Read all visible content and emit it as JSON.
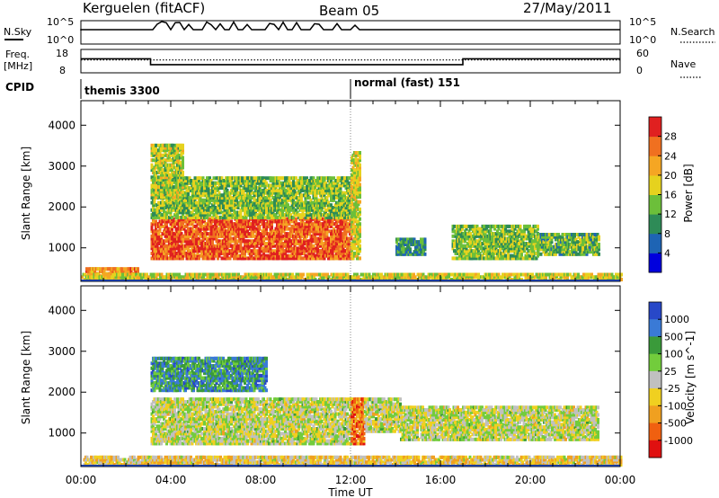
{
  "header": {
    "station": "Kerguelen (fitACF)",
    "beam": "Beam 05",
    "date": "27/May/2011"
  },
  "status_panels": {
    "nsky_label": "N.Sky",
    "nsky_ticks": [
      "10^5",
      "10^0"
    ],
    "nsearch_label": "N.Search",
    "nsearch_ticks": [
      "10^5",
      "10^0"
    ],
    "freq_label_line1": "Freq.",
    "freq_label_line2": "[MHz]",
    "freq_ticks": [
      "18",
      "8"
    ],
    "nave_label": "Nave",
    "nave_ticks": [
      "60",
      "0"
    ],
    "cpid_label": "CPID",
    "cpid_segments": [
      {
        "label": "themis 3300",
        "start_hour": 0
      },
      {
        "label": "normal (fast) 151",
        "start_hour": 12
      }
    ],
    "freq_steps": [
      {
        "from_hour": 0,
        "to_hour": 3.1,
        "level": 0.6
      },
      {
        "from_hour": 3.1,
        "to_hour": 17.0,
        "level": 0.35
      },
      {
        "from_hour": 17.0,
        "to_hour": 24,
        "level": 0.6
      }
    ],
    "nave_level": 0.55
  },
  "chart_data": [
    {
      "type": "heatmap",
      "panel": "power",
      "ylabel": "Slant Range [km]",
      "xlabel": "",
      "ylim": [
        180,
        4600
      ],
      "xlim_hours": [
        0,
        24
      ],
      "y_ticks": [
        "1000",
        "2000",
        "3000",
        "4000"
      ],
      "colorbar_label": "Power [dB]",
      "colorbar_ticks": [
        "4",
        "8",
        "12",
        "16",
        "20",
        "24",
        "28"
      ],
      "colorscale": [
        "#0000dd",
        "#1e64b4",
        "#2e8b57",
        "#6cbf3a",
        "#e6d21e",
        "#f5a623",
        "#f07020",
        "#e02020"
      ],
      "regions": [
        {
          "t0": 3.1,
          "t1": 12.0,
          "r0": 700,
          "r1": 1700,
          "level": 0.85
        },
        {
          "t0": 3.1,
          "t1": 12.0,
          "r0": 1700,
          "r1": 2700,
          "level": 0.45
        },
        {
          "t0": 3.1,
          "t1": 4.5,
          "r0": 2200,
          "r1": 3500,
          "level": 0.5
        },
        {
          "t0": 12.0,
          "t1": 12.4,
          "r0": 700,
          "r1": 3300,
          "level": 0.55
        },
        {
          "t0": 14.0,
          "t1": 15.3,
          "r0": 800,
          "r1": 1200,
          "level": 0.3
        },
        {
          "t0": 16.5,
          "t1": 20.3,
          "r0": 700,
          "r1": 1500,
          "level": 0.45
        },
        {
          "t0": 20.3,
          "t1": 23.0,
          "r0": 800,
          "r1": 1300,
          "level": 0.4
        },
        {
          "t0": 0.2,
          "t1": 2.5,
          "r0": 200,
          "r1": 500,
          "level": 0.75
        },
        {
          "t0": 0.0,
          "t1": 24.0,
          "r0": 180,
          "r1": 320,
          "level": 0.55
        }
      ]
    },
    {
      "type": "heatmap",
      "panel": "velocity",
      "ylabel": "Slant Range [km]",
      "xlabel": "Time UT",
      "ylim": [
        180,
        4600
      ],
      "xlim_hours": [
        0,
        24
      ],
      "y_ticks": [
        "1000",
        "2000",
        "3000",
        "4000"
      ],
      "x_ticks": [
        "00:00",
        "04:00",
        "08:00",
        "12:00",
        "16:00",
        "20:00",
        "00:00"
      ],
      "colorbar_label": "Velocity [m s^-1]",
      "colorbar_ticks": [
        "1000",
        "500",
        "100",
        "25",
        "-25",
        "-100",
        "-500",
        "-1000"
      ],
      "colorscale": [
        "#2848c8",
        "#3a7ad6",
        "#3a9a3a",
        "#72cc3c",
        "#c0c0c0",
        "#f0d020",
        "#f0a020",
        "#f06010",
        "#e01010"
      ],
      "regions": [
        {
          "t0": 3.1,
          "t1": 12.0,
          "r0": 700,
          "r1": 1800,
          "level": 0.5
        },
        {
          "t0": 3.1,
          "t1": 8.2,
          "r0": 2000,
          "r1": 2800,
          "level": 0.25
        },
        {
          "t0": 12.0,
          "t1": 12.6,
          "r0": 700,
          "r1": 1800,
          "level": 0.8
        },
        {
          "t0": 12.6,
          "t1": 14.2,
          "r0": 1000,
          "r1": 1800,
          "level": 0.5
        },
        {
          "t0": 14.2,
          "t1": 23.0,
          "r0": 800,
          "r1": 1600,
          "level": 0.5
        },
        {
          "t0": 0.1,
          "t1": 24.0,
          "r0": 180,
          "r1": 400,
          "level": 0.6
        }
      ]
    }
  ]
}
